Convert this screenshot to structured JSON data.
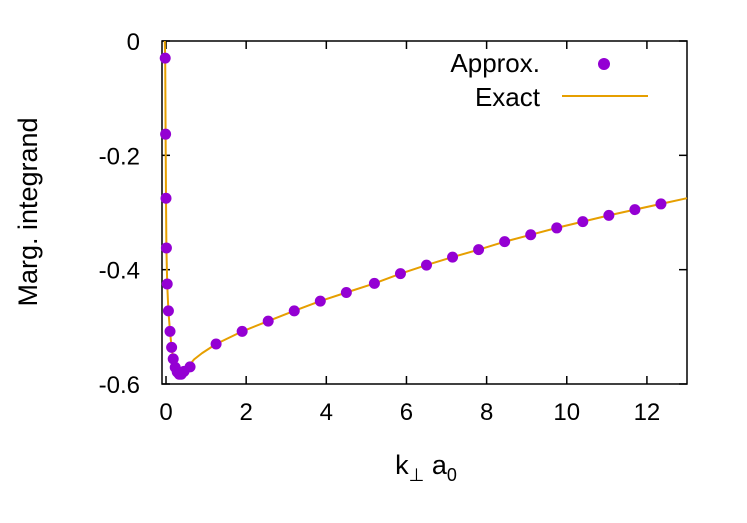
{
  "chart_data": {
    "type": "line",
    "title": "",
    "xlabel": {
      "main": "k",
      "sub1": "⊥",
      "mid": " a",
      "sub2": "0"
    },
    "ylabel": "Marg. integrand",
    "xlim": [
      -0.1,
      13
    ],
    "ylim": [
      -0.6,
      0
    ],
    "xticks": [
      0,
      2,
      4,
      6,
      8,
      10,
      12
    ],
    "xtick_labels": [
      "0",
      "2",
      "4",
      "6",
      "8",
      "10",
      "12"
    ],
    "yticks": [
      0,
      -0.2,
      -0.4,
      -0.6
    ],
    "ytick_labels": [
      "0",
      "-0.2",
      "-0.4",
      "-0.6"
    ],
    "grid": false,
    "legend_position": "top-right",
    "series": [
      {
        "name": "Approx.",
        "style": "points",
        "color": "#9400d3",
        "x": [
          -0.02,
          -0.01,
          0.0,
          0.01,
          0.03,
          0.06,
          0.1,
          0.14,
          0.18,
          0.23,
          0.28,
          0.33,
          0.38,
          0.45,
          0.6,
          1.25,
          1.9,
          2.55,
          3.2,
          3.85,
          4.5,
          5.2,
          5.85,
          6.5,
          7.15,
          7.8,
          8.45,
          9.1,
          9.75,
          10.4,
          11.05,
          11.7,
          12.35
        ],
        "y": [
          -0.03,
          -0.163,
          -0.275,
          -0.362,
          -0.425,
          -0.472,
          -0.508,
          -0.536,
          -0.556,
          -0.571,
          -0.579,
          -0.583,
          -0.583,
          -0.578,
          -0.57,
          -0.53,
          -0.508,
          -0.49,
          -0.472,
          -0.455,
          -0.44,
          -0.424,
          -0.407,
          -0.392,
          -0.378,
          -0.365,
          -0.351,
          -0.339,
          -0.327,
          -0.316,
          -0.305,
          -0.295,
          -0.285
        ]
      },
      {
        "name": "Exact",
        "style": "line",
        "color": "#e69f00",
        "x": [
          -0.03,
          -0.02,
          -0.01,
          0.0,
          0.01,
          0.03,
          0.06,
          0.1,
          0.14,
          0.18,
          0.23,
          0.28,
          0.33,
          0.38,
          0.45,
          0.55,
          0.7,
          0.9,
          1.25,
          1.9,
          2.55,
          3.2,
          3.85,
          4.5,
          5.2,
          5.85,
          6.5,
          7.15,
          7.8,
          8.45,
          9.1,
          9.75,
          10.4,
          11.05,
          11.7,
          12.35,
          13.0
        ],
        "y": [
          0.0,
          -0.03,
          -0.163,
          -0.275,
          -0.362,
          -0.425,
          -0.472,
          -0.508,
          -0.536,
          -0.556,
          -0.571,
          -0.579,
          -0.583,
          -0.583,
          -0.578,
          -0.57,
          -0.557,
          -0.546,
          -0.53,
          -0.508,
          -0.49,
          -0.472,
          -0.455,
          -0.44,
          -0.424,
          -0.407,
          -0.392,
          -0.378,
          -0.365,
          -0.351,
          -0.339,
          -0.327,
          -0.316,
          -0.305,
          -0.295,
          -0.285,
          -0.275
        ]
      }
    ]
  }
}
